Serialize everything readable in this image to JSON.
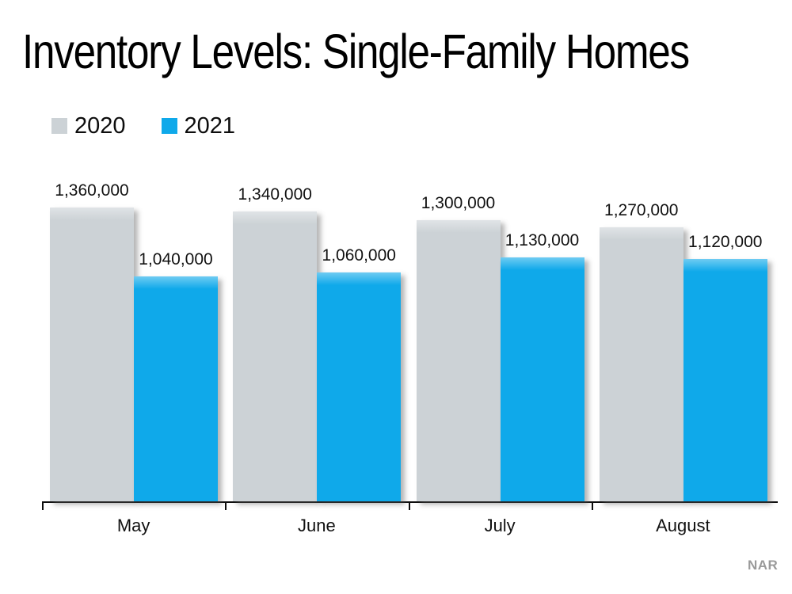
{
  "title": "Inventory Levels: Single-Family Homes",
  "source": "NAR",
  "legend": {
    "items": [
      {
        "label": "2020",
        "color": "#ccd2d6"
      },
      {
        "label": "2021",
        "color": "#0fa9ea"
      }
    ]
  },
  "chart_data": {
    "type": "bar",
    "title": "Inventory Levels: Single-Family Homes",
    "categories": [
      "May",
      "June",
      "July",
      "August"
    ],
    "series": [
      {
        "name": "2020",
        "color": "#ccd2d6",
        "values": [
          1360000,
          1340000,
          1300000,
          1270000
        ],
        "value_labels": [
          "1,360,000",
          "1,340,000",
          "1,300,000",
          "1,270,000"
        ]
      },
      {
        "name": "2021",
        "color": "#0fa9ea",
        "values": [
          1040000,
          1060000,
          1130000,
          1120000
        ],
        "value_labels": [
          "1,040,000",
          "1,060,000",
          "1,130,000",
          "1,120,000"
        ]
      }
    ],
    "xlabel": "",
    "ylabel": "",
    "ylim": [
      0,
      1400000
    ],
    "grid": false,
    "y_axis_visible": false,
    "bar_value_labels_visible": true,
    "legend_position": "top-left",
    "source_label": "NAR"
  }
}
